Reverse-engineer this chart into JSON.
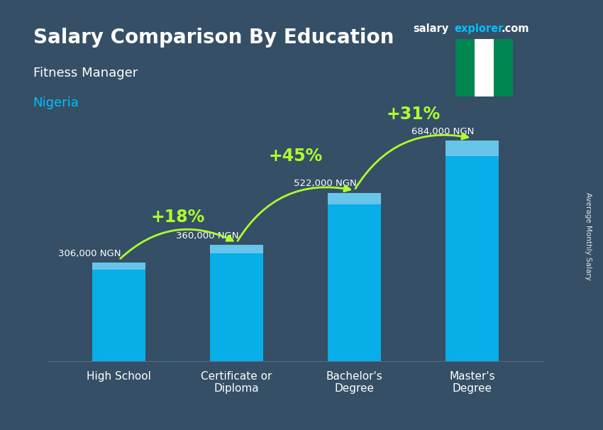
{
  "title_main": "Salary Comparison By Education",
  "subtitle1": "Fitness Manager",
  "subtitle2": "Nigeria",
  "categories": [
    "High School",
    "Certificate or\nDiploma",
    "Bachelor's\nDegree",
    "Master's\nDegree"
  ],
  "values": [
    306000,
    360000,
    522000,
    684000
  ],
  "value_labels": [
    "306,000 NGN",
    "360,000 NGN",
    "522,000 NGN",
    "684,000 NGN"
  ],
  "pct_labels": [
    "+18%",
    "+45%",
    "+31%"
  ],
  "bar_color": "#00BFFF",
  "bar_color_top": "#87CEEB",
  "bg_color_r": 0.1,
  "bg_color_g": 0.22,
  "bg_color_b": 0.32,
  "title_color": "#FFFFFF",
  "subtitle1_color": "#FFFFFF",
  "subtitle2_color": "#00BFFF",
  "value_label_color": "#FFFFFF",
  "pct_color": "#ADFF2F",
  "arrow_color": "#ADFF2F",
  "ylabel_text": "Average Monthly Salary",
  "brand_salary": "salary",
  "brand_explorer": "explorer",
  "brand_com": ".com",
  "brand_explorer_color": "#00BFFF",
  "ylim": [
    0,
    800000
  ],
  "flag_green": "#008751",
  "flag_white": "#FFFFFF",
  "spine_bottom_color": "#AAAAAA"
}
